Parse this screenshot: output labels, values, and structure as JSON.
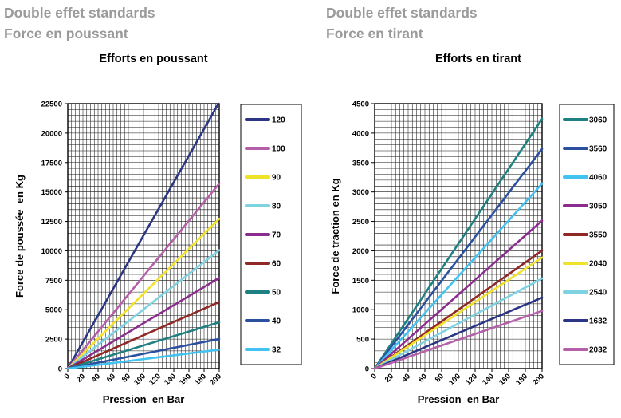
{
  "panels": [
    {
      "header_line1": "Double effet standards",
      "header_line2": "Force en poussant",
      "chart_title": "Efforts en poussant"
    },
    {
      "header_line1": "Double effet standards",
      "header_line2": "Force en tirant",
      "chart_title": "Efforts en tirant"
    }
  ],
  "colors": {
    "axis_title_red": "#ED3323",
    "header_gray": "#9A9A9A",
    "grid_black": "#161616"
  },
  "chart_data": [
    {
      "type": "line",
      "title": "Efforts en poussant",
      "xlabel": "Pression  en Bar",
      "ylabel": "Force de poussée  en Kg",
      "x": [
        0,
        200
      ],
      "xlim": [
        0,
        200
      ],
      "ylim": [
        0,
        22500
      ],
      "x_major_step": 20,
      "x_minor_step": 5,
      "y_major_step": 2500,
      "y_minor_step": 500,
      "grid": true,
      "legend_position": "right",
      "series": [
        {
          "name": "120",
          "color": "#2B3583",
          "values": [
            0,
            22619
          ]
        },
        {
          "name": "100",
          "color": "#B35FA9",
          "values": [
            0,
            15708
          ]
        },
        {
          "name": "90",
          "color": "#F0E229",
          "values": [
            0,
            12723
          ]
        },
        {
          "name": "80",
          "color": "#7FD2E2",
          "values": [
            0,
            10053
          ]
        },
        {
          "name": "70",
          "color": "#8B2D8F",
          "values": [
            0,
            7697
          ]
        },
        {
          "name": "60",
          "color": "#8F2826",
          "values": [
            0,
            5655
          ]
        },
        {
          "name": "50",
          "color": "#1F8081",
          "values": [
            0,
            3927
          ]
        },
        {
          "name": "40",
          "color": "#2C50A0",
          "values": [
            0,
            2513
          ]
        },
        {
          "name": "32",
          "color": "#41C2F0",
          "values": [
            0,
            1608
          ]
        }
      ]
    },
    {
      "type": "line",
      "title": "Efforts en tirant",
      "xlabel": "Pression  en Bar",
      "ylabel": "Force de traction en Kg",
      "x": [
        0,
        200
      ],
      "xlim": [
        0,
        200
      ],
      "ylim": [
        0,
        4500
      ],
      "x_major_step": 20,
      "x_minor_step": 5,
      "y_major_step": 500,
      "y_minor_step": 100,
      "grid": true,
      "legend_position": "right",
      "series": [
        {
          "name": "3060",
          "color": "#1F8081",
          "values": [
            0,
            4241
          ]
        },
        {
          "name": "3560",
          "color": "#2C50A0",
          "values": [
            0,
            3730
          ]
        },
        {
          "name": "4060",
          "color": "#41C2F0",
          "values": [
            0,
            3142
          ]
        },
        {
          "name": "3050",
          "color": "#8B2D8F",
          "values": [
            0,
            2513
          ]
        },
        {
          "name": "3550",
          "color": "#8F2826",
          "values": [
            0,
            2003
          ]
        },
        {
          "name": "2040",
          "color": "#F0E229",
          "values": [
            0,
            1885
          ]
        },
        {
          "name": "2540",
          "color": "#7FD2E2",
          "values": [
            0,
            1531
          ]
        },
        {
          "name": "1632",
          "color": "#2B3583",
          "values": [
            0,
            1206
          ]
        },
        {
          "name": "2032",
          "color": "#B35FA9",
          "values": [
            0,
            980
          ]
        }
      ]
    }
  ]
}
